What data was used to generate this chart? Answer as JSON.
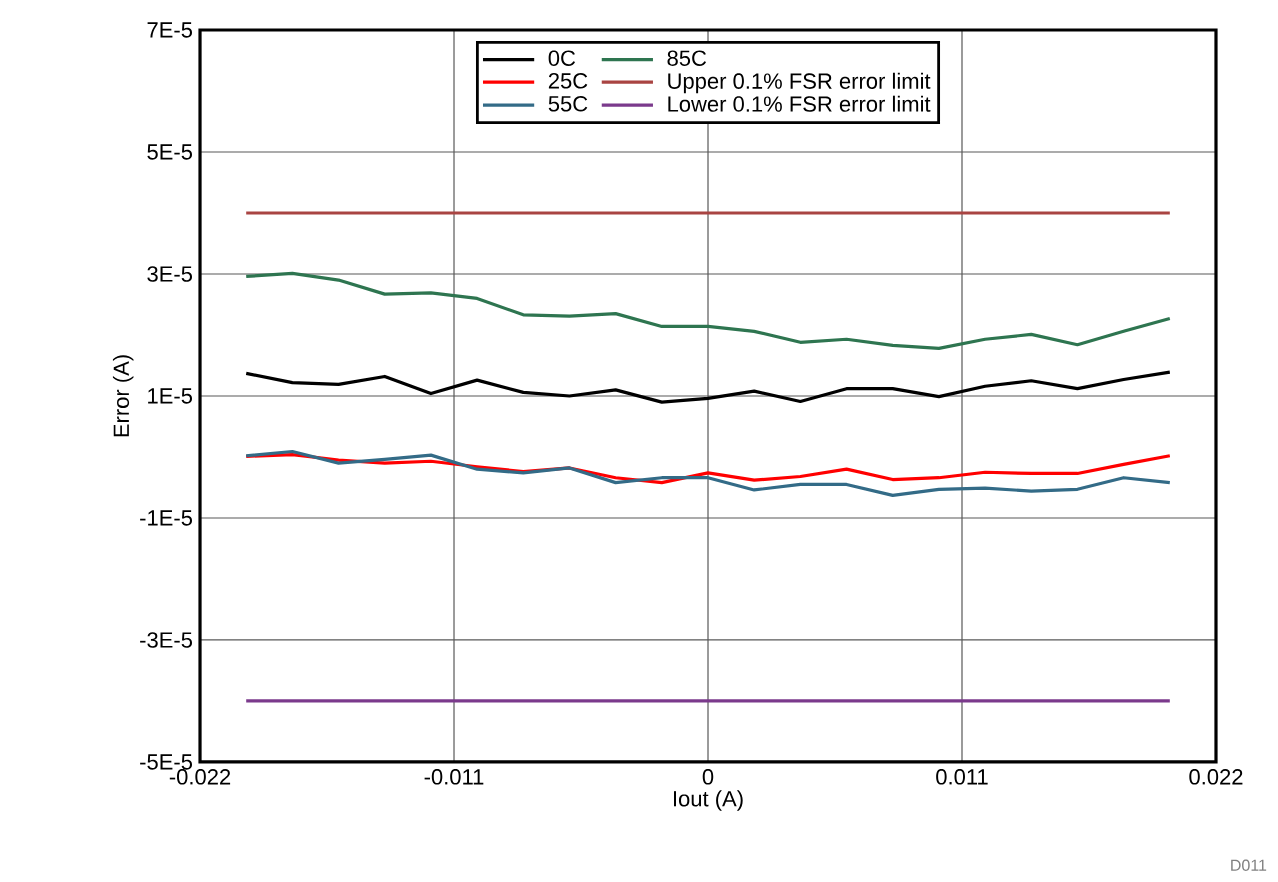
{
  "chart_data": {
    "type": "line",
    "xlabel": "Iout (A)",
    "ylabel": "Error (A)",
    "annotations": [
      "D011"
    ],
    "x": [
      -0.02,
      -0.018,
      -0.016,
      -0.014,
      -0.012,
      -0.01,
      -0.008,
      -0.006,
      -0.004,
      -0.002,
      0,
      0.002,
      0.004,
      0.006,
      0.008,
      0.01,
      0.012,
      0.014,
      0.016,
      0.018,
      0.02
    ],
    "series": [
      {
        "name": "0C",
        "color": "#000000",
        "values": [
          1.37e-05,
          1.22e-05,
          1.19e-05,
          1.32e-05,
          1.04e-05,
          1.26e-05,
          1.06e-05,
          1e-05,
          1.1e-05,
          9e-06,
          9.6e-06,
          1.08e-05,
          9.1e-06,
          1.12e-05,
          1.12e-05,
          9.9e-06,
          1.16e-05,
          1.25e-05,
          1.12e-05,
          1.27e-05,
          1.39e-05
        ]
      },
      {
        "name": "25C",
        "color": "#ff0000",
        "values": [
          1e-07,
          4e-07,
          -5e-07,
          -1e-06,
          -7e-07,
          -1.6e-06,
          -2.4e-06,
          -1.8e-06,
          -3.4e-06,
          -4.2e-06,
          -2.6e-06,
          -3.8e-06,
          -3.2e-06,
          -2e-06,
          -3.7e-06,
          -3.4e-06,
          -2.5e-06,
          -2.7e-06,
          -2.7e-06,
          -1.2e-06,
          2e-07
        ]
      },
      {
        "name": "55C",
        "color": "#336b87",
        "values": [
          2e-07,
          9e-07,
          -1e-06,
          -4e-07,
          3e-07,
          -2e-06,
          -2.6e-06,
          -1.8e-06,
          -4.2e-06,
          -3.4e-06,
          -3.4e-06,
          -5.4e-06,
          -4.5e-06,
          -4.5e-06,
          -6.3e-06,
          -5.3e-06,
          -5.1e-06,
          -5.6e-06,
          -5.3e-06,
          -3.4e-06,
          -4.2e-06
        ]
      },
      {
        "name": "85C",
        "color": "#2e7550",
        "values": [
          2.96e-05,
          3.01e-05,
          2.9e-05,
          2.67e-05,
          2.69e-05,
          2.6e-05,
          2.33e-05,
          2.31e-05,
          2.35e-05,
          2.14e-05,
          2.14e-05,
          2.06e-05,
          1.88e-05,
          1.93e-05,
          1.83e-05,
          1.78e-05,
          1.93e-05,
          2.01e-05,
          1.84e-05,
          2.06e-05,
          2.27e-05
        ]
      },
      {
        "name": "Upper 0.1% FSR error limit",
        "color": "#a94442",
        "values": [
          4e-05,
          4e-05,
          4e-05,
          4e-05,
          4e-05,
          4e-05,
          4e-05,
          4e-05,
          4e-05,
          4e-05,
          4e-05,
          4e-05,
          4e-05,
          4e-05,
          4e-05,
          4e-05,
          4e-05,
          4e-05,
          4e-05,
          4e-05,
          4e-05
        ]
      },
      {
        "name": "Lower 0.1% FSR error limit",
        "color": "#7b3a8c",
        "values": [
          -4e-05,
          -4e-05,
          -4e-05,
          -4e-05,
          -4e-05,
          -4e-05,
          -4e-05,
          -4e-05,
          -4e-05,
          -4e-05,
          -4e-05,
          -4e-05,
          -4e-05,
          -4e-05,
          -4e-05,
          -4e-05,
          -4e-05,
          -4e-05,
          -4e-05,
          -4e-05,
          -4e-05
        ]
      }
    ],
    "xlim": [
      -0.022,
      0.022
    ],
    "xticks": [
      -0.022,
      -0.011,
      0,
      0.011,
      0.022
    ],
    "ylim": [
      -5e-05,
      7e-05
    ],
    "yticks": [
      {
        "value": -5e-05,
        "label": "-5E-5"
      },
      {
        "value": -3e-05,
        "label": "-3E-5"
      },
      {
        "value": -1e-05,
        "label": "-1E-5"
      },
      {
        "value": 1e-05,
        "label": "1E-5"
      },
      {
        "value": 3e-05,
        "label": "3E-5"
      },
      {
        "value": 5e-05,
        "label": "5E-5"
      },
      {
        "value": 7e-05,
        "label": "7E-5"
      }
    ],
    "grid": true,
    "legend": "top",
    "line_style": "solid",
    "marker": "none"
  }
}
